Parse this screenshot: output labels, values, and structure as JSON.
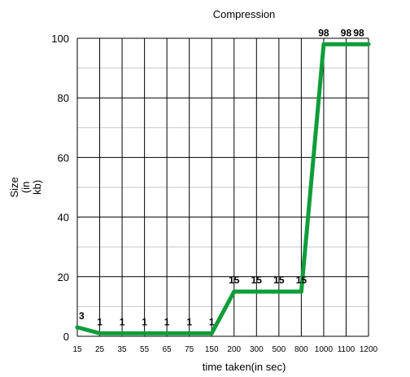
{
  "chart_data": {
    "type": "line",
    "title": "Compression",
    "xlabel": "time taken(in sec)",
    "ylabel_lines": [
      "Size",
      "(in",
      "kb)"
    ],
    "categories": [
      "15",
      "25",
      "35",
      "55",
      "65",
      "75",
      "150",
      "200",
      "300",
      "500",
      "800",
      "1000",
      "1100",
      "1200"
    ],
    "series": [
      {
        "values": [
          3,
          1,
          1,
          1,
          1,
          1,
          1,
          15,
          15,
          15,
          15,
          98,
          98,
          98
        ]
      }
    ],
    "data_labels": [
      "3",
      "1",
      "1",
      "1",
      "1",
      "1",
      "1",
      "15",
      "15",
      "15",
      "15",
      "98",
      "98",
      "98"
    ],
    "ylim": [
      0,
      100
    ],
    "yticks": [
      "0",
      "20",
      "40",
      "60",
      "80",
      "100"
    ],
    "grid": true,
    "legend": "none",
    "line_color": "#0f9d3a"
  }
}
